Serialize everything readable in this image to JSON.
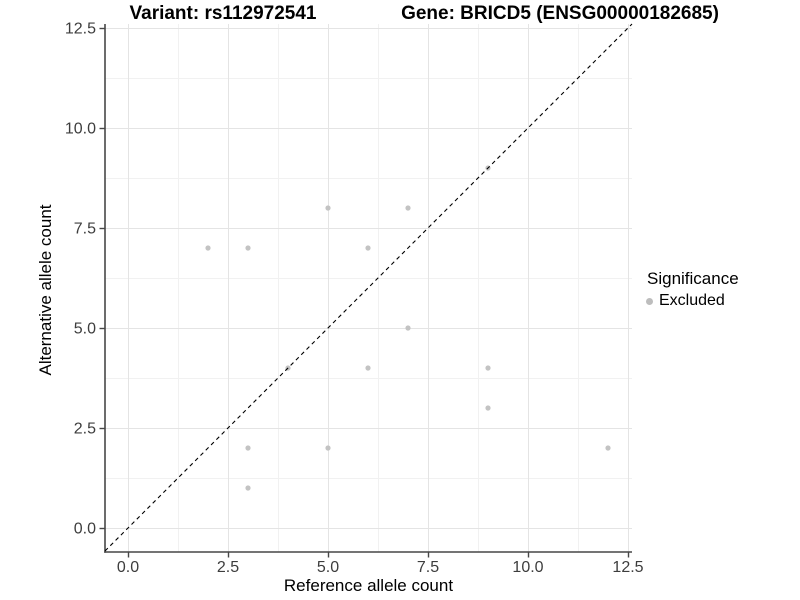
{
  "chart_data": {
    "type": "scatter",
    "title_left": "Variant: rs112972541",
    "title_right": "Gene: BRICD5 (ENSG00000182685)",
    "xlabel": "Reference allele count",
    "ylabel": "Alternative allele count",
    "xlim": [
      -0.6,
      12.6
    ],
    "ylim": [
      -0.6,
      12.6
    ],
    "x_ticks": [
      0,
      2.5,
      5,
      7.5,
      10,
      12.5
    ],
    "x_tick_labels": [
      "0.0",
      "2.5",
      "5.0",
      "7.5",
      "10.0",
      "12.5"
    ],
    "y_ticks": [
      0,
      2.5,
      5,
      7.5,
      10,
      12.5
    ],
    "y_tick_labels": [
      "0.0",
      "2.5",
      "5.0",
      "7.5",
      "10.0",
      "12.5"
    ],
    "minor_ticks": [
      1.25,
      3.75,
      6.25,
      8.75,
      11.25
    ],
    "grid": "major and minor gridlines, white panel",
    "identity_line": {
      "type": "dashed",
      "slope": 1,
      "intercept": 0,
      "color": "#000000"
    },
    "legend": {
      "title": "Significance",
      "position": "right",
      "items": [
        {
          "label": "Excluded",
          "color": "#bdbdbd"
        }
      ]
    },
    "series": [
      {
        "name": "Excluded",
        "color": "#c3c3c3",
        "point_radius": 2.6,
        "points": [
          [
            2,
            7
          ],
          [
            3,
            1
          ],
          [
            3,
            2
          ],
          [
            3,
            7
          ],
          [
            4,
            4
          ],
          [
            5,
            2
          ],
          [
            5,
            8
          ],
          [
            6,
            4
          ],
          [
            6,
            7
          ],
          [
            7,
            5
          ],
          [
            7,
            8
          ],
          [
            9,
            3
          ],
          [
            9,
            4
          ],
          [
            9,
            9
          ],
          [
            12,
            2
          ]
        ]
      }
    ]
  },
  "colors": {
    "background": "#ffffff",
    "grid_major": "#e4e4e4",
    "grid_minor": "#f1f1f1",
    "axis": "#474747",
    "tick_label": "#3d3d3d"
  }
}
